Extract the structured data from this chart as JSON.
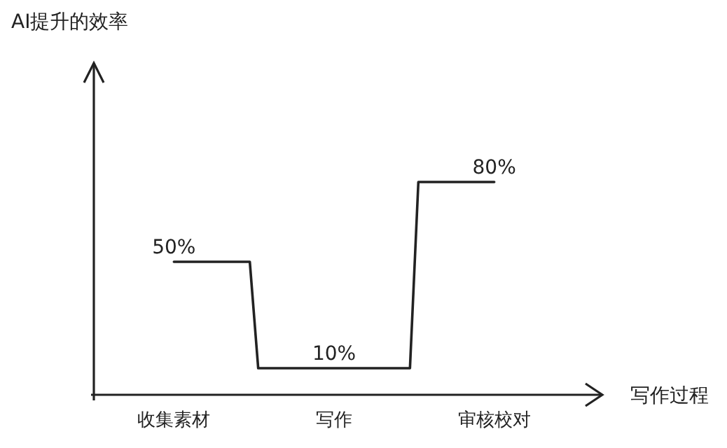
{
  "chart_data": {
    "type": "step",
    "xlabel": "写作过程",
    "annotations": [
      "AI提升的效率"
    ],
    "categories": [
      "收集素材",
      "写作",
      "审核校对"
    ],
    "series": [
      {
        "color": "#222222",
        "values": [
          50,
          10,
          80
        ],
        "value_labels": [
          "50%",
          "10%",
          "80%"
        ]
      }
    ]
  }
}
